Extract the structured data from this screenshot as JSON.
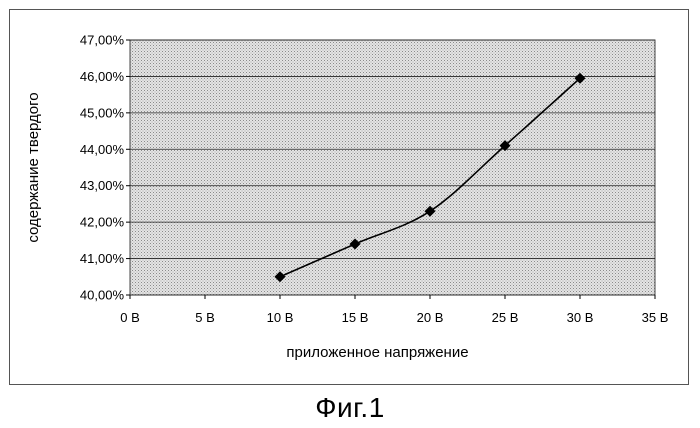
{
  "chart_data": {
    "type": "line",
    "x": [
      10,
      15,
      20,
      25,
      30
    ],
    "values": [
      0.405,
      0.414,
      0.423,
      0.441,
      0.4595
    ],
    "xlabel": "приложенное напряжение",
    "ylabel": "содержание твердого",
    "xlim": [
      0,
      35
    ],
    "ylim": [
      0.4,
      0.47
    ],
    "x_tick_labels": [
      "0 В",
      "5 В",
      "10 В",
      "15 В",
      "20 В",
      "25 В",
      "30 В",
      "35 В"
    ],
    "y_tick_labels": [
      "40,00%",
      "41,00%",
      "42,00%",
      "43,00%",
      "44,00%",
      "45,00%",
      "46,00%",
      "47,00%"
    ],
    "grid": true,
    "marker": "diamond",
    "line_smooth": true,
    "colors": {
      "plot_background": "#d9d9d9",
      "line": "#000000",
      "grid": "#000000"
    }
  },
  "caption": "Фиг.1"
}
